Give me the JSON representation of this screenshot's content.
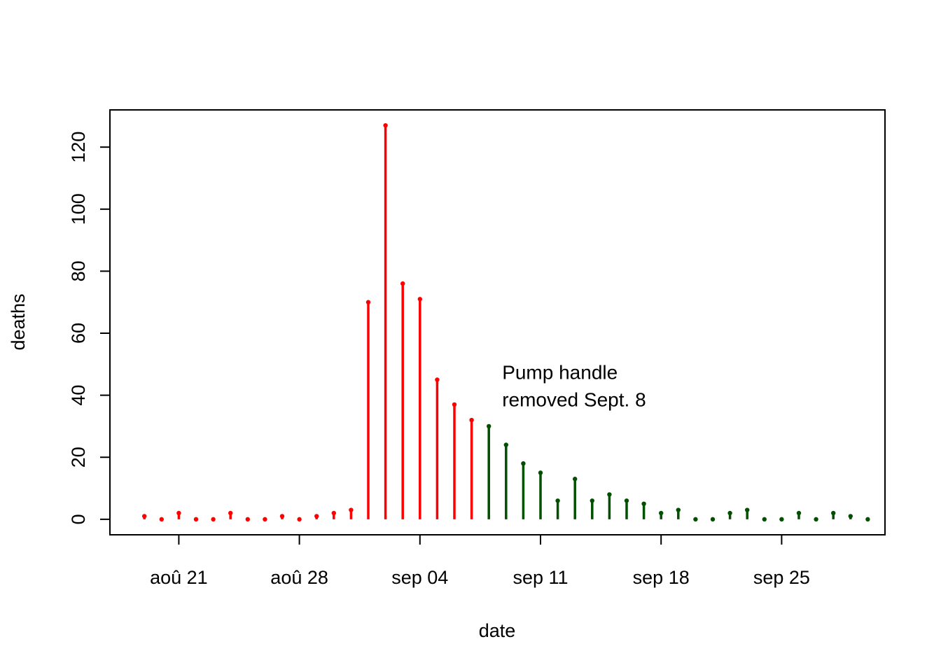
{
  "chart_data": {
    "type": "line",
    "xlabel": "date",
    "ylabel": "deaths",
    "xlim": [
      "1854-08-17",
      "1854-10-01"
    ],
    "ylim": [
      -5,
      132
    ],
    "x_ticks": [
      "1854-08-21",
      "1854-08-28",
      "1854-09-04",
      "1854-09-11",
      "1854-09-18",
      "1854-09-25"
    ],
    "x_tick_labels": [
      "aoû 21",
      "aoû 28",
      "sep 04",
      "sep 11",
      "sep 18",
      "sep 25"
    ],
    "y_ticks": [
      0,
      20,
      40,
      60,
      80,
      100,
      120
    ],
    "y_tick_labels": [
      "0",
      "20",
      "40",
      "60",
      "80",
      "100",
      "120"
    ],
    "annotation": [
      "Pump handle",
      "removed Sept. 8"
    ],
    "annotation_anchor": {
      "x": "1854-09-08",
      "y": 47
    },
    "colors": {
      "before": "#ff0000",
      "after": "#005000",
      "frame": "#000000"
    },
    "series": [
      {
        "color": "#ff0000",
        "x": [
          "1854-08-19",
          "1854-08-20",
          "1854-08-21",
          "1854-08-22",
          "1854-08-23",
          "1854-08-24",
          "1854-08-25",
          "1854-08-26",
          "1854-08-27",
          "1854-08-28",
          "1854-08-29",
          "1854-08-30",
          "1854-08-31",
          "1854-09-01",
          "1854-09-02",
          "1854-09-03",
          "1854-09-04",
          "1854-09-05",
          "1854-09-06",
          "1854-09-07"
        ],
        "values": [
          1,
          0,
          2,
          0,
          0,
          2,
          0,
          0,
          1,
          0,
          1,
          2,
          3,
          70,
          127,
          76,
          71,
          45,
          37,
          32
        ]
      },
      {
        "color": "#005000",
        "x": [
          "1854-09-08",
          "1854-09-09",
          "1854-09-10",
          "1854-09-11",
          "1854-09-12",
          "1854-09-13",
          "1854-09-14",
          "1854-09-15",
          "1854-09-16",
          "1854-09-17",
          "1854-09-18",
          "1854-09-19",
          "1854-09-20",
          "1854-09-21",
          "1854-09-22",
          "1854-09-23",
          "1854-09-24",
          "1854-09-25",
          "1854-09-26",
          "1854-09-27",
          "1854-09-28",
          "1854-09-29",
          "1854-09-30"
        ],
        "values": [
          30,
          24,
          18,
          15,
          6,
          13,
          6,
          8,
          6,
          5,
          2,
          3,
          0,
          0,
          2,
          3,
          0,
          0,
          2,
          0,
          2,
          1,
          0
        ]
      }
    ]
  }
}
